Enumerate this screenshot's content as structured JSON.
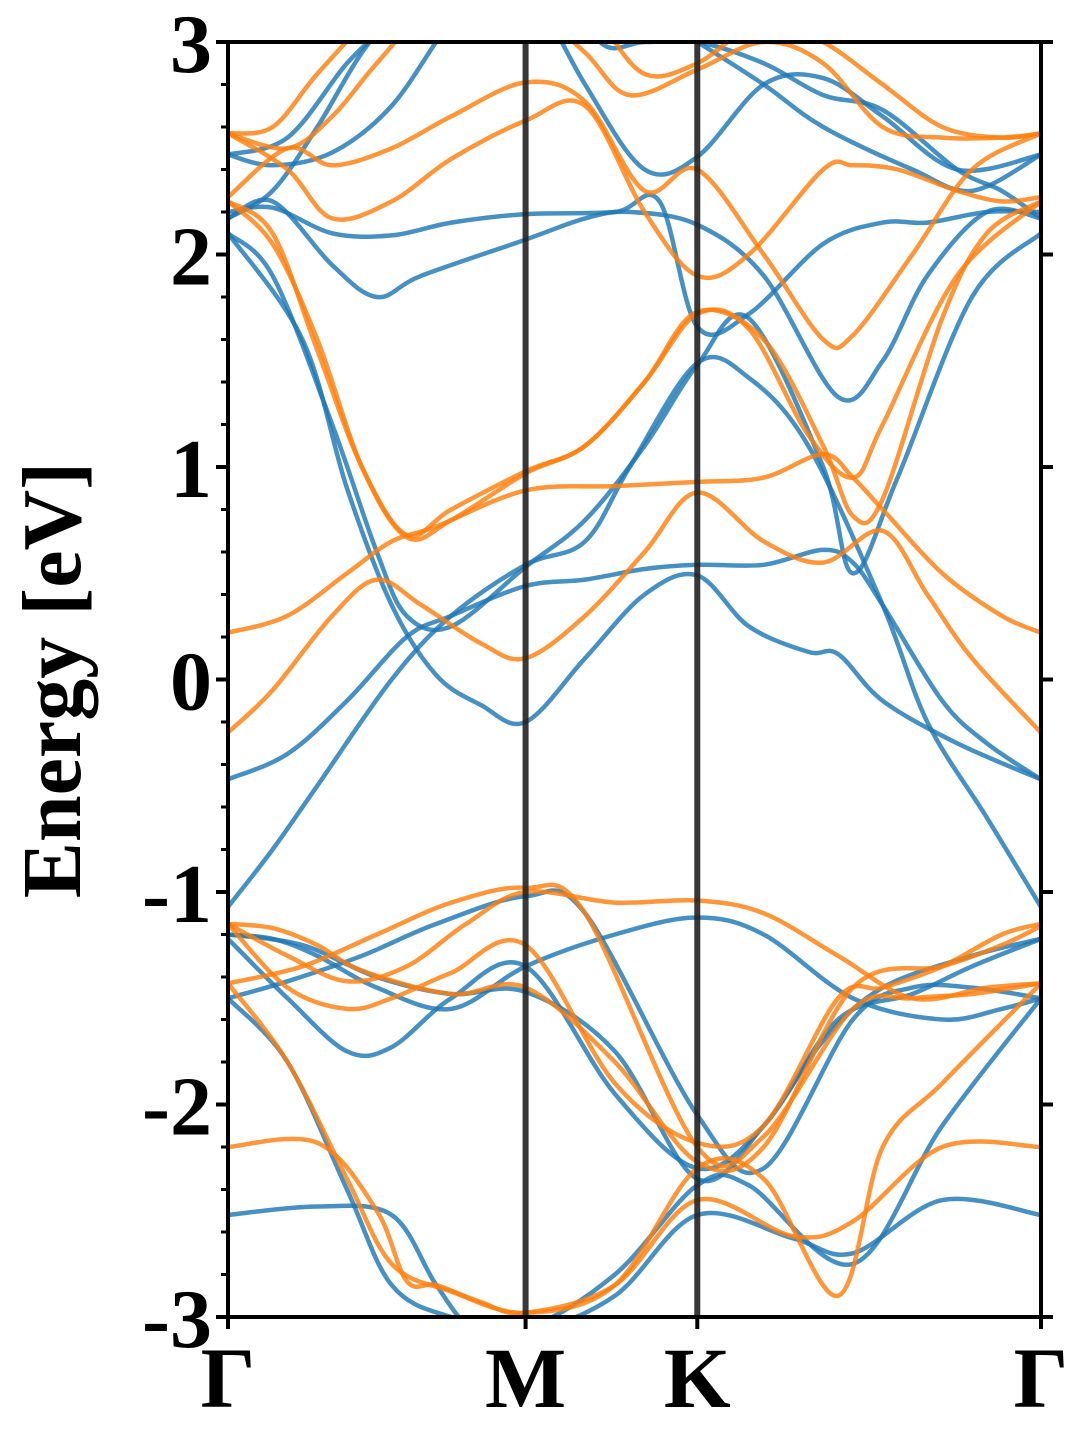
{
  "chart_data": {
    "type": "line",
    "ylabel": "Energy [eV]",
    "xlabel": "",
    "ylim": [
      -3,
      3
    ],
    "yticks": [
      "-3",
      "-2",
      "-1",
      "0",
      "1",
      "2",
      "3"
    ],
    "ytick_values": [
      -3,
      -2,
      -1,
      0,
      1,
      2,
      3
    ],
    "k_path": [
      {
        "label": "Γ",
        "k": 0
      },
      {
        "label": "M",
        "k": 1.0
      },
      {
        "label": "K",
        "k": 1.577
      },
      {
        "label": "Γ",
        "k": 2.732
      }
    ],
    "vertical_lines_at_k": [
      1.0,
      1.577
    ],
    "grid": false,
    "legend": "none",
    "series_colors": [
      "#1f77b4",
      "#ff7f0e"
    ],
    "series": [
      {
        "color": "#1f77b4",
        "bands": [
          {
            "k": [
              0,
              0.3,
              0.55,
              0.7,
              0.82,
              1.0,
              1.3,
              1.577,
              1.9,
              2.1,
              2.4,
              2.732
            ],
            "e": [
              -2.52,
              -2.48,
              -2.52,
              -2.85,
              -3.05,
              -3.08,
              -2.9,
              -2.52,
              -2.63,
              -2.7,
              -2.45,
              -2.52
            ]
          },
          {
            "k": [
              0,
              0.2,
              0.4,
              0.55,
              0.75,
              1.0,
              1.3,
              1.577,
              1.75,
              2.1,
              2.4,
              2.732
            ],
            "e": [
              -1.5,
              -1.8,
              -2.4,
              -2.85,
              -3.0,
              -3.05,
              -2.8,
              -2.38,
              -2.38,
              -2.75,
              -2.1,
              -1.5
            ]
          },
          {
            "k": [
              0,
              0.25,
              0.5,
              0.75,
              1.0,
              1.3,
              1.577,
              1.8,
              2.0,
              2.2,
              2.5,
              2.732
            ],
            "e": [
              -1.2,
              -1.25,
              -1.4,
              -1.48,
              -1.47,
              -1.75,
              -2.35,
              -2.1,
              -1.7,
              -1.45,
              -1.3,
              -1.22
            ]
          },
          {
            "k": [
              0,
              0.2,
              0.4,
              0.55,
              0.75,
              1.0,
              1.3,
              1.577,
              1.8,
              2.05,
              2.3,
              2.5,
              2.732
            ],
            "e": [
              -1.22,
              -1.5,
              -1.75,
              -1.73,
              -1.5,
              -1.35,
              -1.95,
              -2.3,
              -2.1,
              -1.6,
              -1.48,
              -1.35,
              -1.22
            ]
          },
          {
            "k": [
              0,
              0.2,
              0.45,
              0.7,
              1.0,
              1.2,
              1.577,
              1.8,
              2.1,
              2.3,
              2.5,
              2.732
            ],
            "e": [
              -1.5,
              -1.42,
              -1.3,
              -1.15,
              -1.02,
              -1.1,
              -2.05,
              -2.3,
              -1.6,
              -1.45,
              -1.45,
              -1.5
            ]
          },
          {
            "k": [
              0,
              0.15,
              0.3,
              0.5,
              0.75,
              1.0,
              1.3,
              1.577,
              1.8,
              2.1,
              2.4,
              2.6,
              2.732
            ],
            "e": [
              -1.2,
              -1.22,
              -1.3,
              -1.45,
              -1.55,
              -1.35,
              -1.2,
              -1.12,
              -1.2,
              -1.5,
              -1.6,
              -1.55,
              -1.5
            ]
          },
          {
            "k": [
              0,
              0.15,
              0.3,
              0.55,
              0.75,
              1.0,
              1.2,
              1.35,
              1.577,
              1.75,
              1.95,
              2.2,
              2.35,
              2.55,
              2.732
            ],
            "e": [
              -1.07,
              -0.8,
              -0.5,
              0.0,
              0.3,
              0.54,
              0.65,
              1.0,
              1.49,
              1.42,
              1.1,
              0.35,
              -0.2,
              -0.65,
              -1.07
            ]
          },
          {
            "k": [
              0,
              0.2,
              0.4,
              0.6,
              0.75,
              1.0,
              1.2,
              1.4,
              1.577,
              1.8,
              2.0,
              2.1,
              2.2,
              2.4,
              2.55,
              2.732
            ],
            "e": [
              -0.47,
              -0.35,
              -0.1,
              0.2,
              0.3,
              0.44,
              0.47,
              0.52,
              0.54,
              0.54,
              0.61,
              0.55,
              0.35,
              -0.1,
              -0.3,
              -0.47
            ]
          },
          {
            "k": [
              0,
              0.25,
              0.4,
              0.55,
              0.7,
              0.85,
              1.0,
              1.2,
              1.4,
              1.577,
              1.75,
              1.95,
              2.05,
              2.2,
              2.45,
              2.732
            ],
            "e": [
              2.1,
              1.6,
              0.9,
              0.35,
              0.02,
              -0.12,
              -0.2,
              0.1,
              0.4,
              0.49,
              0.25,
              0.13,
              0.12,
              -0.1,
              -0.3,
              -0.47
            ]
          },
          {
            "k": [
              0,
              0.15,
              0.35,
              0.5,
              0.6,
              0.75,
              1.0,
              1.2,
              1.4,
              1.577,
              1.75,
              2.0,
              2.1,
              2.25,
              2.5,
              2.732
            ],
            "e": [
              2.1,
              1.9,
              1.2,
              0.6,
              0.3,
              0.25,
              0.53,
              0.75,
              1.1,
              1.48,
              1.7,
              1.0,
              0.5,
              0.95,
              1.8,
              2.1
            ]
          },
          {
            "k": [
              0,
              0.15,
              0.35,
              0.5,
              0.65,
              1.0,
              1.2,
              1.35,
              1.577,
              1.8,
              2.05,
              2.2,
              2.35,
              2.55,
              2.732
            ],
            "e": [
              2.17,
              2.25,
              1.95,
              1.8,
              1.9,
              2.07,
              2.17,
              2.2,
              2.14,
              1.9,
              1.33,
              1.5,
              1.9,
              2.2,
              2.17
            ]
          },
          {
            "k": [
              0,
              0.15,
              0.35,
              0.55,
              0.75,
              1.0,
              1.3,
              1.45,
              1.577,
              1.75,
              2.0,
              2.2,
              2.35,
              2.55,
              2.732
            ],
            "e": [
              2.2,
              2.22,
              2.1,
              2.09,
              2.15,
              2.19,
              2.2,
              2.25,
              1.66,
              1.72,
              2.05,
              2.15,
              2.15,
              2.2,
              2.2
            ]
          },
          {
            "k": [
              0,
              0.15,
              0.35,
              0.55,
              0.75,
              0.9,
              1.0,
              1.2,
              1.4,
              1.577,
              1.8,
              2.0,
              2.2,
              2.45,
              2.732
            ],
            "e": [
              2.47,
              2.42,
              2.48,
              2.7,
              3.1,
              3.3,
              3.3,
              2.8,
              2.4,
              2.46,
              2.8,
              2.83,
              2.65,
              2.4,
              2.47
            ]
          },
          {
            "k": [
              0,
              0.15,
              0.3,
              0.45,
              0.6,
              0.75,
              1.1,
              1.25,
              1.4,
              1.577,
              1.8,
              2.0,
              2.2,
              2.45,
              2.6,
              2.732
            ],
            "e": [
              2.17,
              2.3,
              2.6,
              2.95,
              3.2,
              3.4,
              3.4,
              3.0,
              3.0,
              3.0,
              2.9,
              2.75,
              2.68,
              2.4,
              2.3,
              2.17
            ]
          },
          {
            "k": [
              0,
              0.2,
              0.4,
              0.55,
              0.7,
              1.2,
              1.4,
              1.577,
              1.8,
              2.0,
              2.3,
              2.5,
              2.732
            ],
            "e": [
              2.47,
              2.55,
              2.9,
              3.1,
              3.3,
              3.3,
              3.15,
              3.0,
              2.8,
              2.6,
              2.4,
              2.3,
              2.47
            ]
          }
        ]
      },
      {
        "color": "#ff7f0e",
        "bands": [
          {
            "k": [
              0,
              0.3,
              0.5,
              0.6,
              0.7,
              0.85,
              1.0,
              1.3,
              1.577,
              1.9,
              2.1,
              2.4,
              2.732
            ],
            "e": [
              -2.2,
              -2.18,
              -2.5,
              -2.83,
              -2.85,
              -2.93,
              -2.98,
              -2.85,
              -2.45,
              -2.62,
              -2.55,
              -2.2,
              -2.2
            ]
          },
          {
            "k": [
              0,
              0.2,
              0.4,
              0.55,
              0.75,
              1.0,
              1.3,
              1.577,
              1.8,
              2.05,
              2.2,
              2.4,
              2.732
            ],
            "e": [
              -1.43,
              -1.8,
              -2.35,
              -2.75,
              -2.88,
              -2.98,
              -2.85,
              -2.3,
              -2.35,
              -2.9,
              -2.2,
              -1.9,
              -1.43
            ]
          },
          {
            "k": [
              0,
              0.15,
              0.3,
              0.45,
              0.75,
              1.0,
              1.3,
              1.577,
              1.8,
              2.1,
              2.4,
              2.6,
              2.732
            ],
            "e": [
              -1.15,
              -1.17,
              -1.25,
              -1.37,
              -1.48,
              -1.45,
              -1.8,
              -2.27,
              -2.2,
              -1.45,
              -1.35,
              -1.25,
              -1.16
            ]
          },
          {
            "k": [
              0,
              0.2,
              0.4,
              0.55,
              0.75,
              1.0,
              1.3,
              1.577,
              1.8,
              2.05,
              2.2,
              2.4,
              2.6,
              2.732
            ],
            "e": [
              -1.15,
              -1.45,
              -1.55,
              -1.5,
              -1.38,
              -1.25,
              -1.9,
              -2.18,
              -2.1,
              -1.5,
              -1.45,
              -1.35,
              -1.2,
              -1.15
            ]
          },
          {
            "k": [
              0,
              0.25,
              0.5,
              0.75,
              1.0,
              1.2,
              1.577,
              1.8,
              2.1,
              2.3,
              2.5,
              2.732
            ],
            "e": [
              -1.43,
              -1.35,
              -1.2,
              -1.05,
              -0.98,
              -1.1,
              -2.2,
              -2.15,
              -1.55,
              -1.5,
              -1.48,
              -1.43
            ]
          },
          {
            "k": [
              0,
              0.2,
              0.4,
              0.6,
              0.8,
              1.0,
              1.3,
              1.577,
              1.8,
              2.05,
              2.3,
              2.55,
              2.732
            ],
            "e": [
              -1.15,
              -1.3,
              -1.42,
              -1.35,
              -1.15,
              -1.0,
              -1.05,
              -1.04,
              -1.1,
              -1.3,
              -1.5,
              -1.45,
              -1.43
            ]
          },
          {
            "k": [
              0,
              0.15,
              0.35,
              0.5,
              0.65,
              0.85,
              1.0,
              1.2,
              1.4,
              1.577,
              1.8,
              2.0,
              2.2,
              2.35,
              2.5,
              2.732
            ],
            "e": [
              -0.25,
              -0.05,
              0.3,
              0.47,
              0.35,
              0.17,
              0.1,
              0.3,
              0.6,
              0.88,
              0.65,
              0.55,
              0.7,
              0.4,
              0.1,
              -0.25
            ]
          },
          {
            "k": [
              0,
              0.2,
              0.4,
              0.55,
              0.7,
              1.0,
              1.3,
              1.577,
              1.8,
              2.0,
              2.1,
              2.2,
              2.4,
              2.6,
              2.732
            ],
            "e": [
              0.22,
              0.3,
              0.5,
              0.65,
              0.72,
              0.89,
              0.91,
              0.93,
              0.95,
              1.06,
              0.95,
              0.8,
              0.5,
              0.3,
              0.22
            ]
          },
          {
            "k": [
              0,
              0.15,
              0.3,
              0.45,
              0.6,
              0.75,
              1.0,
              1.2,
              1.4,
              1.577,
              1.8,
              2.0,
              2.1,
              2.2,
              2.4,
              2.55,
              2.732
            ],
            "e": [
              2.25,
              2.05,
              1.6,
              1.0,
              0.67,
              0.75,
              0.97,
              1.1,
              1.4,
              1.73,
              1.6,
              1.1,
              0.77,
              0.85,
              1.7,
              2.1,
              2.25
            ]
          },
          {
            "k": [
              0,
              0.15,
              0.3,
              0.45,
              0.6,
              0.75,
              1.0,
              1.2,
              1.4,
              1.577,
              1.75,
              1.95,
              2.1,
              2.2,
              2.45,
              2.732
            ],
            "e": [
              2.25,
              2.1,
              1.55,
              1.0,
              0.68,
              0.8,
              0.98,
              1.1,
              1.4,
              1.72,
              1.65,
              1.15,
              0.95,
              1.2,
              1.9,
              2.25
            ]
          },
          {
            "k": [
              0,
              0.2,
              0.35,
              0.55,
              0.75,
              1.0,
              1.2,
              1.4,
              1.577,
              1.75,
              2.0,
              2.1,
              2.25,
              2.45,
              2.6,
              2.732
            ],
            "e": [
              2.57,
              2.4,
              2.17,
              2.25,
              2.45,
              2.63,
              2.7,
              2.2,
              1.9,
              2.0,
              2.4,
              2.42,
              2.4,
              2.3,
              2.25,
              2.27
            ]
          },
          {
            "k": [
              0,
              0.2,
              0.35,
              0.55,
              0.75,
              1.0,
              1.2,
              1.4,
              1.577,
              1.8,
              2.0,
              2.1,
              2.3,
              2.5,
              2.732
            ],
            "e": [
              2.27,
              2.5,
              2.42,
              2.5,
              2.65,
              2.81,
              2.72,
              2.3,
              2.4,
              2.0,
              1.6,
              1.62,
              2.0,
              2.4,
              2.57
            ]
          },
          {
            "k": [
              0,
              0.2,
              0.35,
              0.5,
              0.7,
              0.9,
              1.0,
              1.2,
              1.35,
              1.577,
              1.8,
              2.0,
              2.2,
              2.4,
              2.6,
              2.732
            ],
            "e": [
              2.57,
              2.5,
              2.65,
              2.9,
              3.2,
              3.3,
              3.2,
              2.95,
              2.75,
              2.87,
              3.0,
              2.9,
              2.6,
              2.55,
              2.55,
              2.57
            ]
          },
          {
            "k": [
              0,
              0.15,
              0.3,
              0.5,
              0.7,
              1.1,
              1.25,
              1.4,
              1.577,
              1.8,
              2.0,
              2.2,
              2.4,
              2.6,
              2.732
            ],
            "e": [
              2.57,
              2.6,
              2.85,
              3.15,
              3.4,
              3.4,
              3.1,
              2.85,
              2.9,
              3.1,
              3.0,
              2.8,
              2.6,
              2.55,
              2.57
            ]
          }
        ]
      }
    ]
  }
}
